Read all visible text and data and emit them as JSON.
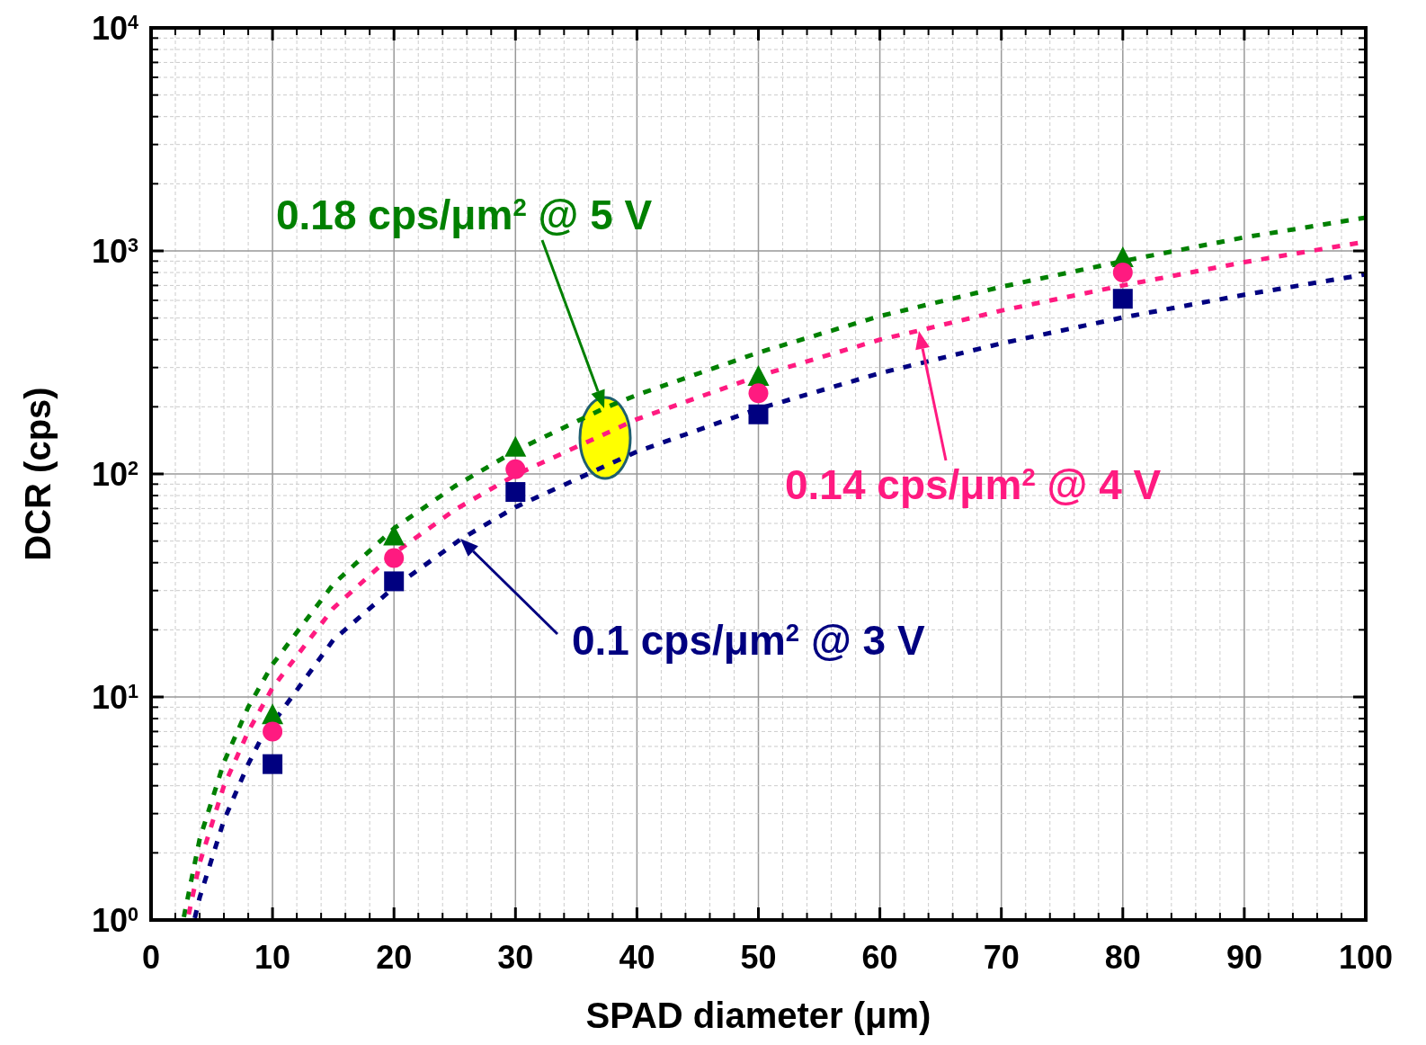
{
  "chart_data": {
    "type": "scatter",
    "xlabel": "SPAD diameter (μm)",
    "ylabel": "DCR (cps)",
    "log": "y",
    "grid": true,
    "xlim": [
      0,
      100
    ],
    "xticks": [
      0,
      10,
      20,
      30,
      40,
      50,
      60,
      70,
      80,
      90,
      100
    ],
    "ylim": [
      1,
      10000
    ],
    "yticks": [
      {
        "value": 1,
        "label": "10$^{0}$"
      },
      {
        "value": 10,
        "label": "10$^{1}$"
      },
      {
        "value": 100,
        "label": "10$^{2}$"
      },
      {
        "value": 1000,
        "label": "10$^{3}$"
      },
      {
        "value": 10000,
        "label": "10$^{4}$"
      }
    ],
    "series": [
      {
        "type": "line",
        "color": "#008000",
        "line_style": "dotted",
        "x": [
          2.7,
          4,
          6,
          8,
          10,
          15,
          20,
          25,
          30,
          37.3,
          40,
          50,
          60,
          70,
          80,
          90,
          100
        ],
        "values": [
          1.03,
          2.3,
          5.1,
          9,
          14,
          32,
          57,
          88,
          127,
          197,
          226,
          350,
          510,
          690,
          900,
          1150,
          1410
        ]
      },
      {
        "type": "line",
        "color": "#ff1a80",
        "line_style": "dotted",
        "x": [
          3.1,
          4,
          6,
          8,
          10,
          15,
          20,
          25,
          30,
          40,
          50,
          60,
          63.2,
          70,
          80,
          90,
          100
        ],
        "values": [
          1.06,
          1.8,
          4,
          7,
          11,
          25,
          44,
          69,
          99,
          176,
          275,
          400,
          439,
          540,
          700,
          890,
          1100
        ]
      },
      {
        "type": "line",
        "color": "#000080",
        "line_style": "dotted",
        "x": [
          3.6,
          4,
          6,
          8,
          9,
          15,
          20,
          25.5,
          30,
          40,
          50,
          60,
          70,
          80,
          90,
          100
        ],
        "values": [
          1.02,
          1.26,
          2.8,
          5,
          6.4,
          18,
          31,
          51,
          71,
          126,
          196,
          283,
          385,
          503,
          636,
          785
        ]
      },
      {
        "color": "#008000",
        "marker": "triangle",
        "x": [
          10,
          20,
          30,
          50,
          80
        ],
        "values": [
          8.2,
          52,
          130,
          270,
          920
        ]
      },
      {
        "color": "#ff1a80",
        "marker": "circle",
        "x": [
          10,
          20,
          30,
          50,
          80
        ],
        "values": [
          7,
          42,
          105,
          230,
          800
        ]
      },
      {
        "color": "#000080",
        "marker": "square",
        "x": [
          10,
          20,
          30,
          50,
          80
        ],
        "values": [
          5,
          33,
          83,
          185,
          610
        ]
      }
    ],
    "annotations": [
      "0.18 cps/μm$^{2}$ @ 5 V",
      "0.14 cps/μm$^{2}$ @ 4 V",
      "0.1 cps/μm$^{2}$ @ 3 V"
    ]
  }
}
